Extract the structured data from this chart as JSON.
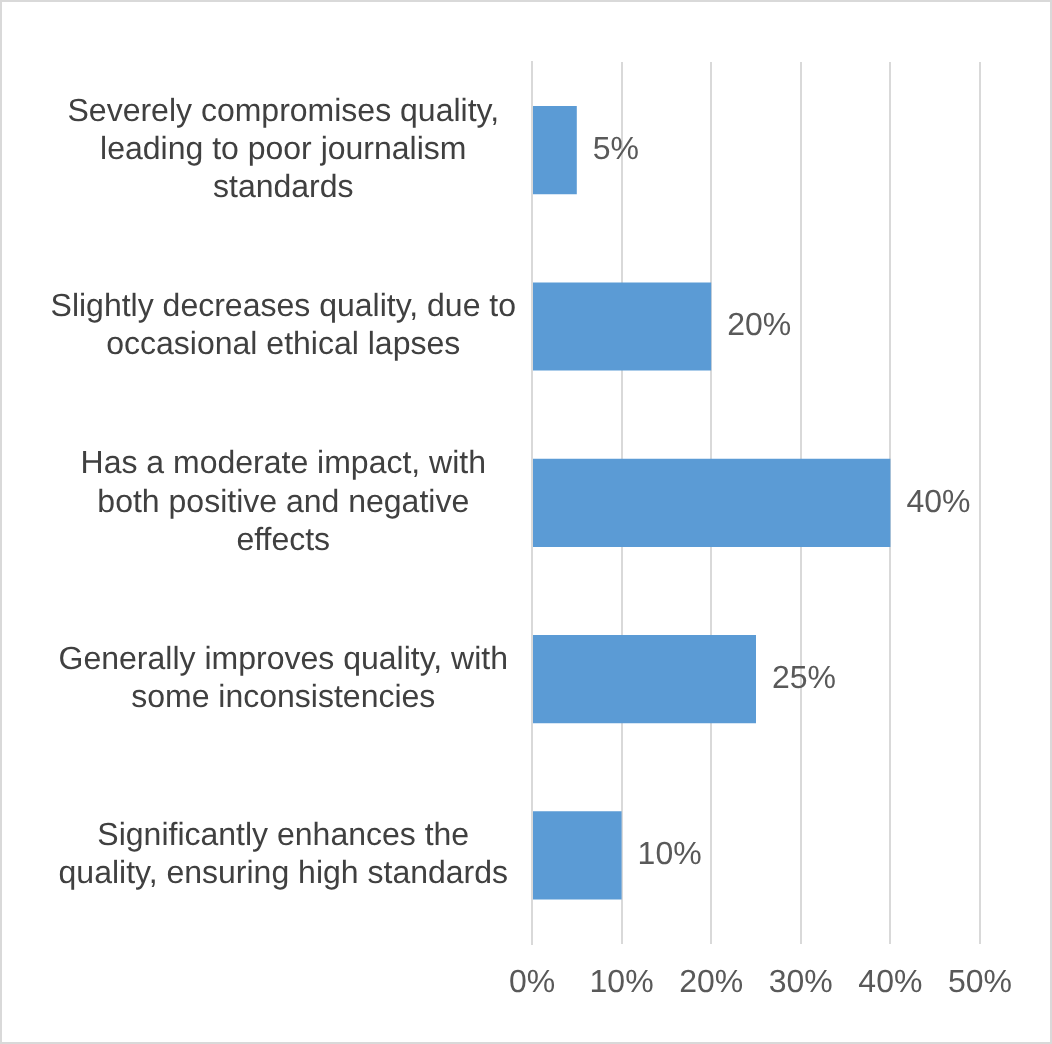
{
  "chart_data": {
    "type": "bar",
    "orientation": "horizontal",
    "categories": [
      "Severely compromises quality, leading to poor journalism standards",
      "Slightly decreases quality, due to occasional ethical lapses",
      "Has a moderate impact, with both positive and negative effects",
      "Generally improves quality, with some inconsistencies",
      "Significantly enhances the quality, ensuring high standards"
    ],
    "values": [
      5,
      20,
      40,
      25,
      10
    ],
    "value_labels": [
      "5%",
      "20%",
      "40%",
      "25%",
      "10%"
    ],
    "color": "#5b9bd5",
    "xlim": [
      0,
      50
    ],
    "xticks": [
      {
        "value": 0,
        "label": "0%"
      },
      {
        "value": 10,
        "label": "10%"
      },
      {
        "value": 20,
        "label": "20%"
      },
      {
        "value": 30,
        "label": "30%"
      },
      {
        "value": 40,
        "label": "40%"
      },
      {
        "value": 50,
        "label": "50%"
      }
    ],
    "grid": "x"
  }
}
